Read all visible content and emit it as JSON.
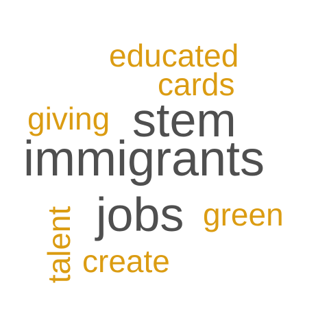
{
  "words": {
    "educated": "educated",
    "cards": "cards",
    "giving": "giving",
    "stem": "stem",
    "immigrants": "immigrants",
    "jobs": "jobs",
    "green": "green",
    "create": "create",
    "talent": "talent"
  },
  "colors": {
    "accent": "#DB9C12",
    "dark": "#4F4F4F"
  }
}
